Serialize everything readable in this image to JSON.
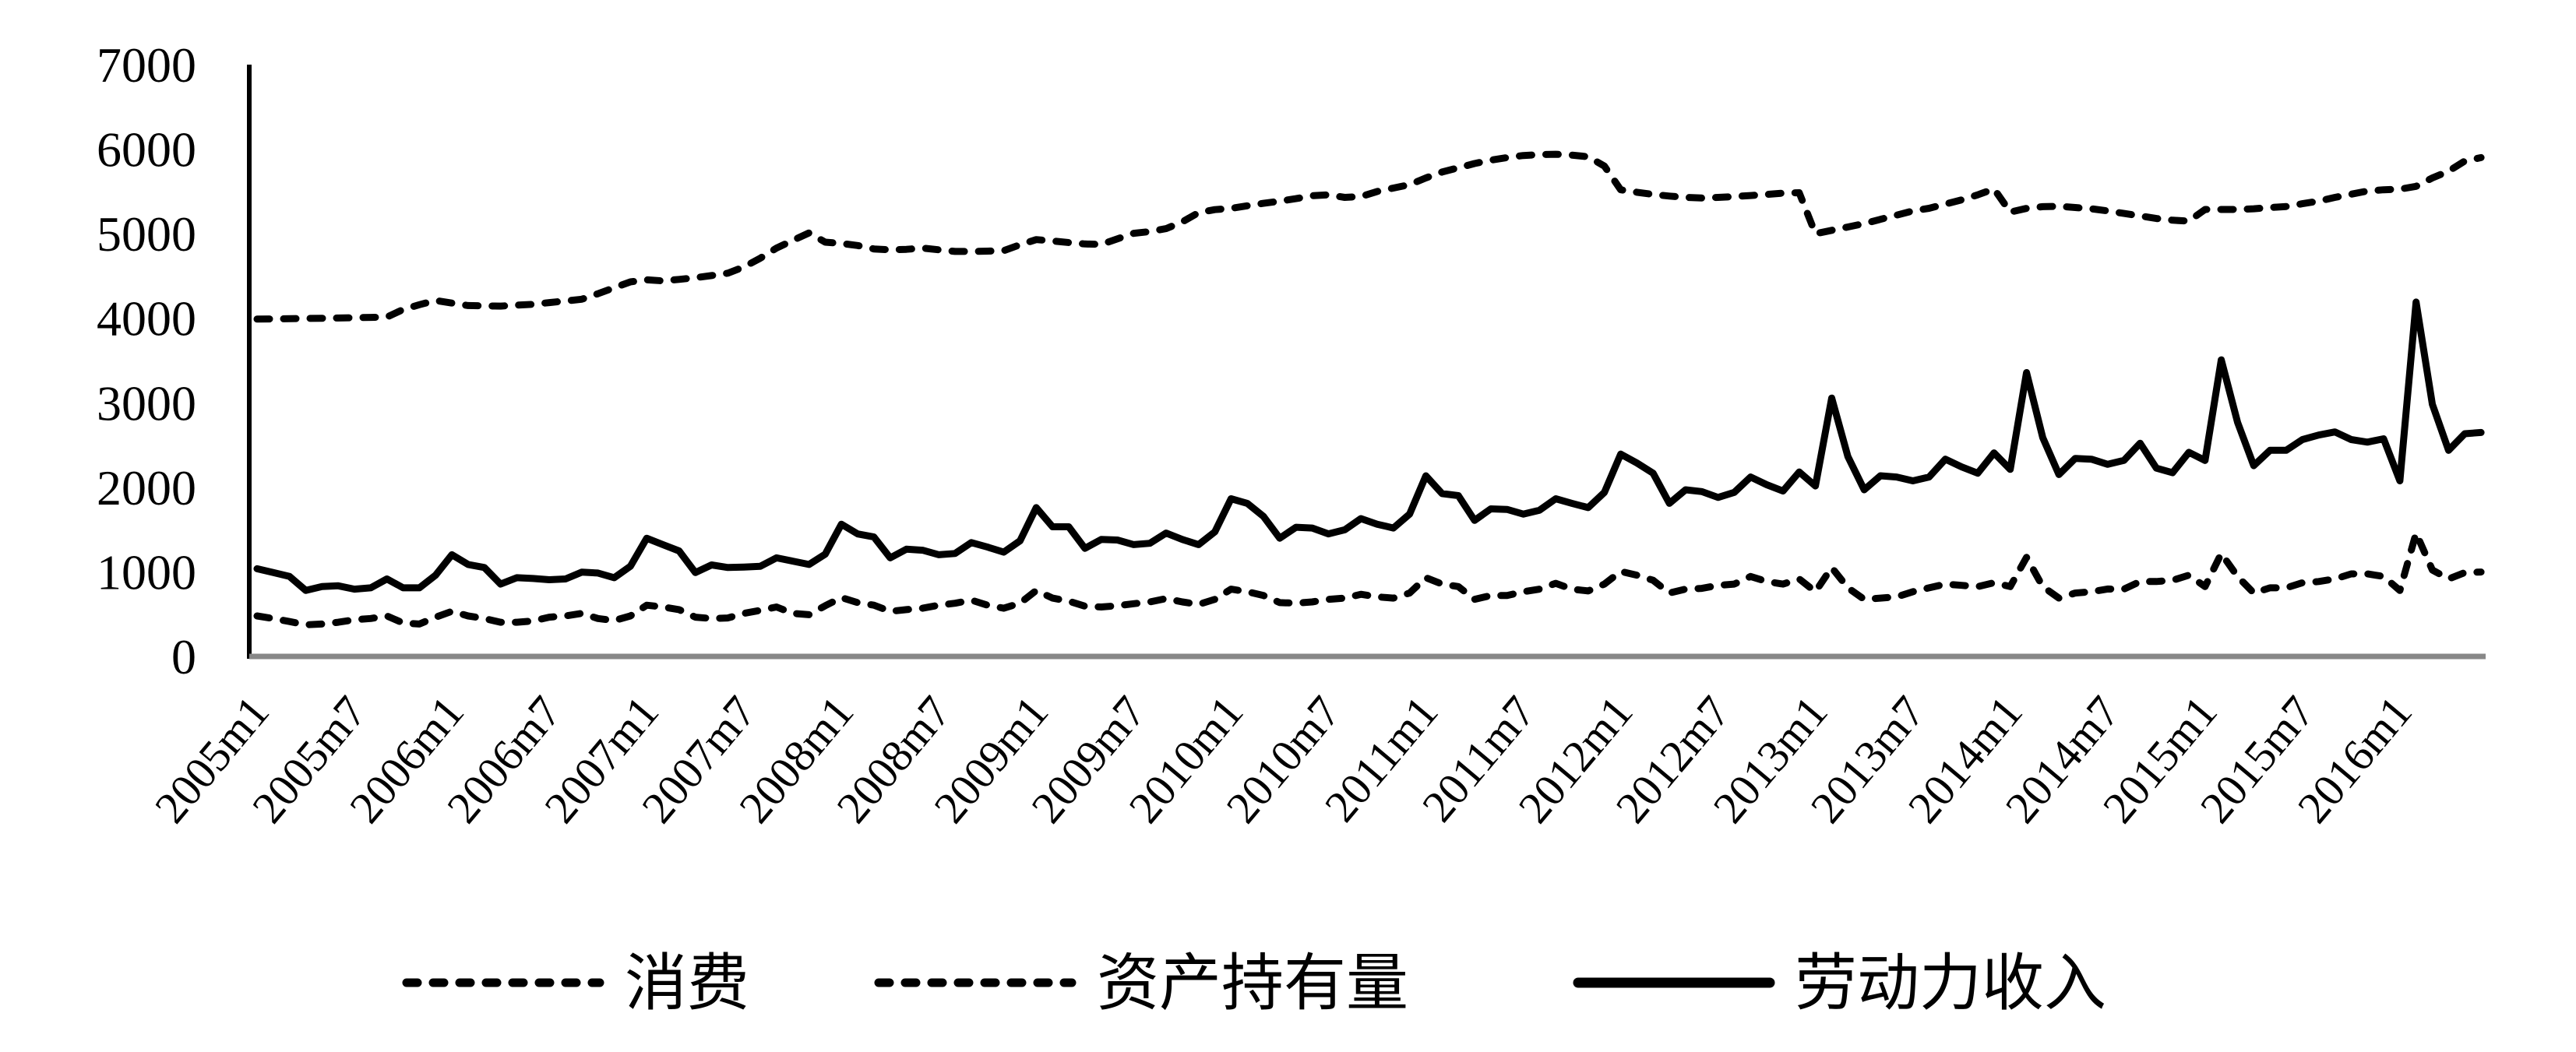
{
  "chart_data": {
    "type": "line",
    "title": "",
    "xlabel": "",
    "ylabel": "",
    "ylim": [
      0,
      7000
    ],
    "yticks": [
      "0",
      "1000",
      "2000",
      "3000",
      "4000",
      "5000",
      "6000",
      "7000"
    ],
    "xtick_labels": [
      "2005m1",
      "2005m7",
      "2006m1",
      "2006m7",
      "2007m1",
      "2007m7",
      "2008m1",
      "2008m7",
      "2009m1",
      "2009m7",
      "2010m1",
      "2010m7",
      "2011m1",
      "2011m7",
      "2012m1",
      "2012m7",
      "2013m1",
      "2013m7",
      "2014m1",
      "2014m7",
      "2015m1",
      "2015m7",
      "2016m1"
    ],
    "grid": false,
    "legend_position": "bottom",
    "x": [
      "2005m1",
      "2005m2",
      "2005m3",
      "2005m4",
      "2005m5",
      "2005m6",
      "2005m7",
      "2005m8",
      "2005m9",
      "2005m10",
      "2005m11",
      "2005m12",
      "2006m1",
      "2006m2",
      "2006m3",
      "2006m4",
      "2006m5",
      "2006m6",
      "2006m7",
      "2006m8",
      "2006m9",
      "2006m10",
      "2006m11",
      "2006m12",
      "2007m1",
      "2007m2",
      "2007m3",
      "2007m4",
      "2007m5",
      "2007m6",
      "2007m7",
      "2007m8",
      "2007m9",
      "2007m10",
      "2007m11",
      "2007m12",
      "2008m1",
      "2008m2",
      "2008m3",
      "2008m4",
      "2008m5",
      "2008m6",
      "2008m7",
      "2008m8",
      "2008m9",
      "2008m10",
      "2008m11",
      "2008m12",
      "2009m1",
      "2009m2",
      "2009m3",
      "2009m4",
      "2009m5",
      "2009m6",
      "2009m7",
      "2009m8",
      "2009m9",
      "2009m10",
      "2009m11",
      "2009m12",
      "2010m1",
      "2010m2",
      "2010m3",
      "2010m4",
      "2010m5",
      "2010m6",
      "2010m7",
      "2010m8",
      "2010m9",
      "2010m10",
      "2010m11",
      "2010m12",
      "2011m1",
      "2011m2",
      "2011m3",
      "2011m4",
      "2011m5",
      "2011m6",
      "2011m7",
      "2011m8",
      "2011m9",
      "2011m10",
      "2011m11",
      "2011m12",
      "2012m1",
      "2012m2",
      "2012m3",
      "2012m4",
      "2012m5",
      "2012m6",
      "2012m7",
      "2012m8",
      "2012m9",
      "2012m10",
      "2012m11",
      "2012m12",
      "2013m1",
      "2013m2",
      "2013m3",
      "2013m4",
      "2013m5",
      "2013m6",
      "2013m7",
      "2013m8",
      "2013m9",
      "2013m10",
      "2013m11",
      "2013m12",
      "2014m1",
      "2014m2",
      "2014m3",
      "2014m4",
      "2014m5",
      "2014m6",
      "2014m7",
      "2014m8",
      "2014m9",
      "2014m10",
      "2014m11",
      "2014m12",
      "2015m1",
      "2015m2",
      "2015m3",
      "2015m4",
      "2015m5",
      "2015m6",
      "2015m7",
      "2015m8",
      "2015m9",
      "2015m10",
      "2015m11",
      "2015m12",
      "2016m1",
      "2016m2",
      "2016m3",
      "2016m4",
      "2016m5",
      "2016m6"
    ],
    "series": [
      {
        "name": "消费",
        "style": "dashed",
        "color": "#000000",
        "values": [
          479,
          449,
          413,
          374,
          383,
          404,
          434,
          449,
          479,
          395,
          383,
          464,
          533,
          479,
          449,
          404,
          404,
          419,
          464,
          479,
          509,
          449,
          425,
          479,
          606,
          585,
          554,
          464,
          449,
          455,
          509,
          545,
          585,
          509,
          494,
          600,
          696,
          636,
          606,
          533,
          554,
          570,
          606,
          629,
          666,
          606,
          570,
          630,
          780,
          690,
          654,
          594,
          585,
          600,
          624,
          645,
          684,
          645,
          615,
          675,
          796,
          765,
          720,
          636,
          630,
          645,
          675,
          690,
          735,
          705,
          690,
          750,
          931,
          856,
          826,
          675,
          720,
          720,
          765,
          796,
          865,
          796,
          775,
          856,
          1006,
          961,
          901,
          750,
          796,
          805,
          841,
          856,
          946,
          886,
          856,
          916,
          765,
          1052,
          811,
          675,
          690,
          705,
          765,
          811,
          856,
          841,
          826,
          871,
          826,
          1172,
          826,
          690,
          750,
          765,
          798,
          796,
          886,
          886,
          901,
          961,
          826,
          1218,
          946,
          750,
          811,
          811,
          871,
          886,
          916,
          976,
          976,
          946,
          780,
          1458,
          1022,
          916,
          992,
          998
        ]
      },
      {
        "name": "资产持有量",
        "style": "dashed",
        "color": "#000000",
        "values": [
          3990,
          3992,
          3995,
          3998,
          4000,
          4003,
          4007,
          4010,
          4014,
          4104,
          4160,
          4210,
          4180,
          4150,
          4147,
          4144,
          4155,
          4165,
          4185,
          4205,
          4225,
          4290,
          4361,
          4430,
          4455,
          4442,
          4460,
          4480,
          4505,
          4533,
          4608,
          4710,
          4830,
          4920,
          5010,
          4900,
          4885,
          4860,
          4820,
          4810,
          4815,
          4830,
          4810,
          4790,
          4790,
          4794,
          4800,
          4870,
          4930,
          4915,
          4895,
          4879,
          4873,
          4940,
          5005,
          5025,
          5060,
          5140,
          5250,
          5285,
          5300,
          5330,
          5360,
          5385,
          5415,
          5450,
          5460,
          5430,
          5440,
          5500,
          5540,
          5580,
          5660,
          5730,
          5780,
          5830,
          5870,
          5900,
          5925,
          5935,
          5940,
          5930,
          5910,
          5800,
          5520,
          5490,
          5465,
          5445,
          5430,
          5422,
          5430,
          5440,
          5452,
          5465,
          5480,
          5485,
          5000,
          5040,
          5080,
          5120,
          5170,
          5220,
          5270,
          5301,
          5350,
          5400,
          5460,
          5530,
          5256,
          5300,
          5320,
          5325,
          5310,
          5295,
          5270,
          5240,
          5210,
          5180,
          5160,
          5150,
          5287,
          5287,
          5287,
          5295,
          5310,
          5322,
          5355,
          5385,
          5430,
          5467,
          5505,
          5520,
          5527,
          5560,
          5660,
          5740,
          5860,
          5900
        ]
      },
      {
        "name": "劳动力收入",
        "style": "solid",
        "color": "#000000",
        "values": [
          1037,
          992,
          946,
          781,
          826,
          835,
          796,
          811,
          916,
          811,
          811,
          961,
          1203,
          1088,
          1052,
          856,
          931,
          922,
          907,
          916,
          997,
          986,
          931,
          1067,
          1398,
          1323,
          1248,
          992,
          1082,
          1052,
          1057,
          1067,
          1166,
          1127,
          1088,
          1209,
          1564,
          1449,
          1413,
          1166,
          1268,
          1256,
          1203,
          1218,
          1347,
          1293,
          1233,
          1368,
          1760,
          1534,
          1534,
          1278,
          1383,
          1377,
          1323,
          1338,
          1459,
          1383,
          1323,
          1474,
          1865,
          1811,
          1655,
          1398,
          1528,
          1519,
          1450,
          1498,
          1630,
          1564,
          1519,
          1684,
          2137,
          1926,
          1902,
          1609,
          1745,
          1739,
          1684,
          1730,
          1865,
          1811,
          1760,
          1941,
          2393,
          2288,
          2167,
          1811,
          1971,
          1950,
          1881,
          1941,
          2122,
          2031,
          1956,
          2182,
          2016,
          3056,
          2363,
          1971,
          2137,
          2122,
          2077,
          2122,
          2333,
          2242,
          2167,
          2408,
          2212,
          3357,
          2589,
          2152,
          2342,
          2333,
          2272,
          2318,
          2522,
          2227,
          2173,
          2414,
          2318,
          3508,
          2770,
          2257,
          2438,
          2438,
          2565,
          2619,
          2655,
          2565,
          2535,
          2574,
          2077,
          4192,
          2981,
          2438,
          2634,
          2649
        ]
      }
    ],
    "axis_colors": {
      "y_axis": "#000000",
      "x_axis": "#888888"
    }
  }
}
